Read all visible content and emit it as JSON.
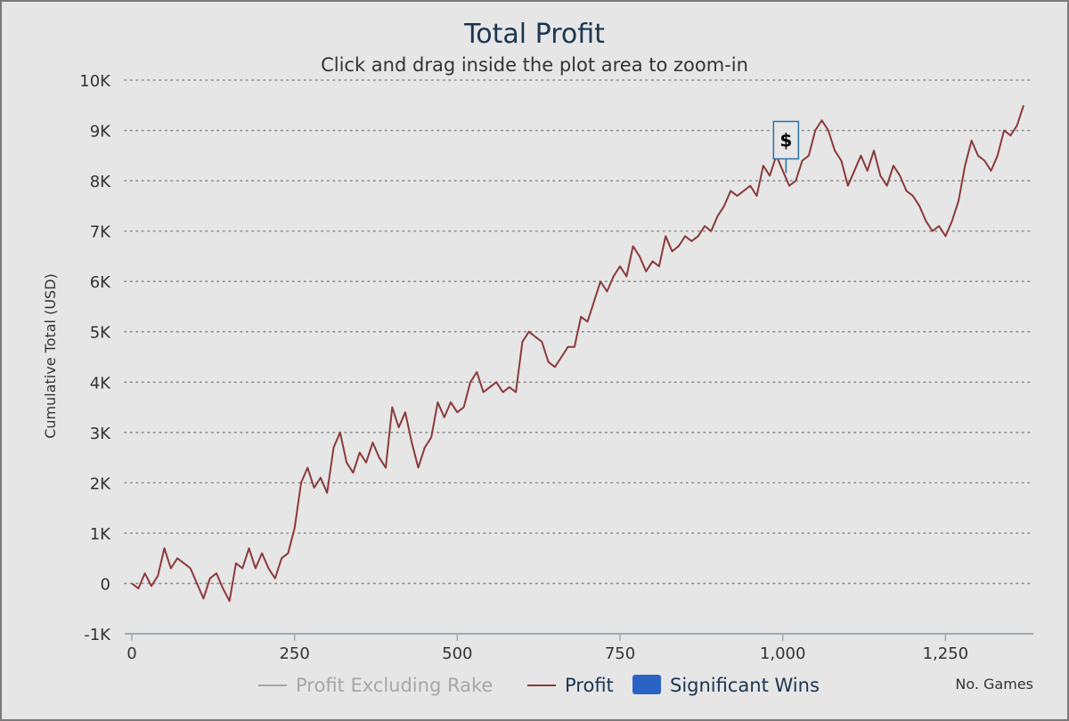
{
  "chart_data": {
    "type": "line",
    "title": "Total Profit",
    "subtitle": "Click and drag inside the plot area to zoom-in",
    "xlabel": "No. Games",
    "ylabel": "Cumulative Total (USD)",
    "xlim": [
      0,
      1385
    ],
    "ylim": [
      -1000,
      10000
    ],
    "x_ticks": [
      0,
      250,
      500,
      750,
      1000,
      1250
    ],
    "x_tick_labels": [
      "0",
      "250",
      "500",
      "750",
      "1,000",
      "1,250"
    ],
    "y_ticks": [
      -1000,
      0,
      1000,
      2000,
      3000,
      4000,
      5000,
      6000,
      7000,
      8000,
      9000,
      10000
    ],
    "y_tick_labels": [
      "-1K",
      "0",
      "1K",
      "2K",
      "3K",
      "4K",
      "5K",
      "6K",
      "7K",
      "8K",
      "9K",
      "10K"
    ],
    "grid": true,
    "legend_position": "bottom",
    "legend": [
      {
        "name": "Profit Excluding Rake",
        "color": "#a6a6a6",
        "style": "line"
      },
      {
        "name": "Profit",
        "color": "#8b3a3a",
        "style": "line"
      },
      {
        "name": "Significant Wins",
        "color": "#2a63c4",
        "style": "box"
      }
    ],
    "flags": [
      {
        "x": 1005,
        "y": 8400,
        "label": "$"
      }
    ],
    "series": [
      {
        "name": "Profit",
        "color": "#8b3a3a",
        "x": [
          0,
          10,
          20,
          30,
          40,
          50,
          60,
          70,
          80,
          90,
          100,
          110,
          120,
          130,
          140,
          150,
          160,
          170,
          180,
          190,
          200,
          210,
          220,
          230,
          240,
          250,
          260,
          270,
          280,
          290,
          300,
          310,
          320,
          330,
          340,
          350,
          360,
          370,
          380,
          390,
          400,
          410,
          420,
          430,
          440,
          450,
          460,
          470,
          480,
          490,
          500,
          510,
          520,
          530,
          540,
          550,
          560,
          570,
          580,
          590,
          600,
          610,
          620,
          630,
          640,
          650,
          660,
          670,
          680,
          690,
          700,
          710,
          720,
          730,
          740,
          750,
          760,
          770,
          780,
          790,
          800,
          810,
          820,
          830,
          840,
          850,
          860,
          870,
          880,
          890,
          900,
          910,
          920,
          930,
          940,
          950,
          960,
          970,
          980,
          990,
          1000,
          1010,
          1020,
          1030,
          1040,
          1050,
          1060,
          1070,
          1080,
          1090,
          1100,
          1110,
          1120,
          1130,
          1140,
          1150,
          1160,
          1170,
          1180,
          1190,
          1200,
          1210,
          1220,
          1230,
          1240,
          1250,
          1260,
          1270,
          1280,
          1290,
          1300,
          1310,
          1320,
          1330,
          1340,
          1350,
          1360,
          1370
        ],
        "values": [
          0,
          -100,
          200,
          -50,
          150,
          700,
          300,
          500,
          400,
          300,
          0,
          -300,
          100,
          200,
          -100,
          -350,
          400,
          300,
          700,
          300,
          600,
          300,
          100,
          500,
          600,
          1100,
          2000,
          2300,
          1900,
          2100,
          1800,
          2700,
          3000,
          2400,
          2200,
          2600,
          2400,
          2800,
          2500,
          2300,
          3500,
          3100,
          3400,
          2800,
          2300,
          2700,
          2900,
          3600,
          3300,
          3600,
          3400,
          3500,
          4000,
          4200,
          3800,
          3900,
          4000,
          3800,
          3900,
          3800,
          4800,
          5000,
          4900,
          4800,
          4400,
          4300,
          4500,
          4700,
          4700,
          5300,
          5200,
          5600,
          6000,
          5800,
          6100,
          6300,
          6100,
          6700,
          6500,
          6200,
          6400,
          6300,
          6900,
          6600,
          6700,
          6900,
          6800,
          6900,
          7100,
          7000,
          7300,
          7500,
          7800,
          7700,
          7800,
          7900,
          7700,
          8300,
          8100,
          8500,
          8200,
          7900,
          8000,
          8400,
          8500,
          9000,
          9200,
          9000,
          8600,
          8400,
          7900,
          8200,
          8500,
          8200,
          8600,
          8100,
          7900,
          8300,
          8100,
          7800,
          7700,
          7500,
          7200,
          7000,
          7100,
          6900,
          7200,
          7600,
          8300,
          8800,
          8500,
          8400,
          8200,
          8500,
          9000,
          8900,
          9100,
          9500
        ]
      }
    ]
  }
}
